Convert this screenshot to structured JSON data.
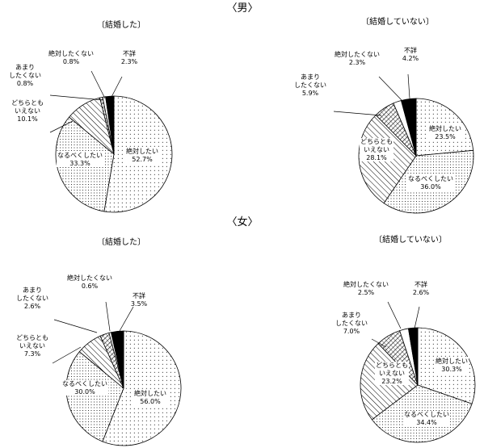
{
  "sections": [
    {
      "id": "male",
      "label": "〈男〉"
    },
    {
      "id": "female",
      "label": "〈女〉"
    }
  ],
  "chart_data": [
    {
      "type": "pie",
      "section": "〈男〉",
      "title": "〔結婚した〕",
      "slices": [
        {
          "label": [
            "絶対したい"
          ],
          "value": 52.7,
          "value_label": "52.7%",
          "pattern": "dots-sparse"
        },
        {
          "label": [
            "なるべくしたい"
          ],
          "value": 33.3,
          "value_label": "33.3%",
          "pattern": "dots-dense"
        },
        {
          "label": [
            "どちらとも",
            "いえない"
          ],
          "value": 10.1,
          "value_label": "10.1%",
          "pattern": "hatch"
        },
        {
          "label": [
            "あまり",
            "したくない"
          ],
          "value": 0.8,
          "value_label": "0.8%",
          "pattern": "crosshatch"
        },
        {
          "label": [
            "絶対したくない"
          ],
          "value": 0.8,
          "value_label": "0.8%",
          "pattern": "white"
        },
        {
          "label": [
            "不詳"
          ],
          "value": 2.3,
          "value_label": "2.3%",
          "pattern": "black"
        }
      ]
    },
    {
      "type": "pie",
      "section": "〈男〉",
      "title": "〔結婚していない〕",
      "slices": [
        {
          "label": [
            "絶対したい"
          ],
          "value": 23.5,
          "value_label": "23.5%",
          "pattern": "dots-sparse"
        },
        {
          "label": [
            "なるべくしたい"
          ],
          "value": 36.0,
          "value_label": "36.0%",
          "pattern": "dots-dense"
        },
        {
          "label": [
            "どちらとも",
            "いえない"
          ],
          "value": 28.1,
          "value_label": "28.1%",
          "pattern": "hatch"
        },
        {
          "label": [
            "あまり",
            "したくない"
          ],
          "value": 5.9,
          "value_label": "5.9%",
          "pattern": "crosshatch"
        },
        {
          "label": [
            "絶対したくない"
          ],
          "value": 2.3,
          "value_label": "2.3%",
          "pattern": "white"
        },
        {
          "label": [
            "不詳"
          ],
          "value": 4.2,
          "value_label": "4.2%",
          "pattern": "black"
        }
      ]
    },
    {
      "type": "pie",
      "section": "〈女〉",
      "title": "〔結婚した〕",
      "slices": [
        {
          "label": [
            "絶対したい"
          ],
          "value": 56.0,
          "value_label": "56.0%",
          "pattern": "dots-sparse"
        },
        {
          "label": [
            "なるべくしたい"
          ],
          "value": 30.0,
          "value_label": "30.0%",
          "pattern": "dots-dense"
        },
        {
          "label": [
            "どちらとも",
            "いえない"
          ],
          "value": 7.3,
          "value_label": "7.3%",
          "pattern": "hatch"
        },
        {
          "label": [
            "あまり",
            "したくない"
          ],
          "value": 2.6,
          "value_label": "2.6%",
          "pattern": "crosshatch"
        },
        {
          "label": [
            "絶対したくない"
          ],
          "value": 0.6,
          "value_label": "0.6%",
          "pattern": "white"
        },
        {
          "label": [
            "不詳"
          ],
          "value": 3.5,
          "value_label": "3.5%",
          "pattern": "black"
        }
      ]
    },
    {
      "type": "pie",
      "section": "〈女〉",
      "title": "〔結婚していない〕",
      "slices": [
        {
          "label": [
            "絶対したい"
          ],
          "value": 30.3,
          "value_label": "30.3%",
          "pattern": "dots-sparse"
        },
        {
          "label": [
            "なるべくしたい"
          ],
          "value": 34.4,
          "value_label": "34.4%",
          "pattern": "dots-dense"
        },
        {
          "label": [
            "どちらとも",
            "いえない"
          ],
          "value": 23.2,
          "value_label": "23.2%",
          "pattern": "hatch"
        },
        {
          "label": [
            "あまり",
            "したくない"
          ],
          "value": 7.0,
          "value_label": "7.0%",
          "pattern": "crosshatch"
        },
        {
          "label": [
            "絶対したくない"
          ],
          "value": 2.5,
          "value_label": "2.5%",
          "pattern": "white"
        },
        {
          "label": [
            "不詳"
          ],
          "value": 2.6,
          "value_label": "2.6%",
          "pattern": "black"
        }
      ]
    }
  ]
}
